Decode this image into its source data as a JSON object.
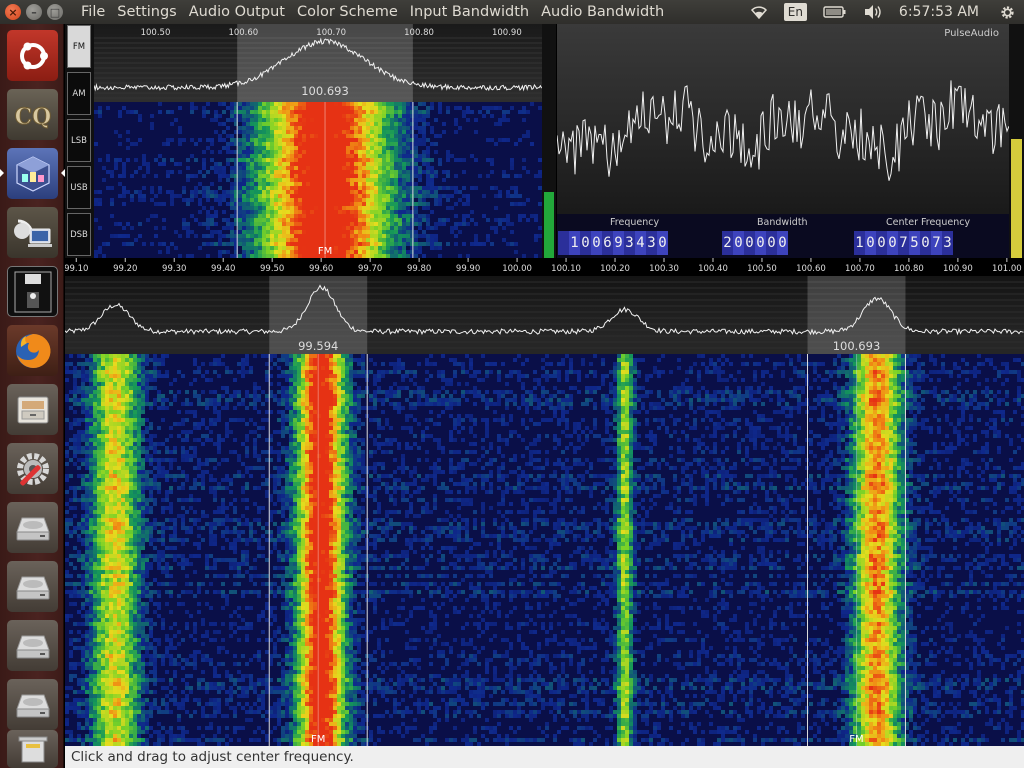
{
  "window": {
    "close_glyph": "×",
    "minimize_glyph": "–",
    "maximize_glyph": "□"
  },
  "menubar": {
    "items": [
      "File",
      "Settings",
      "Audio Output",
      "Color Scheme",
      "Input Bandwidth",
      "Audio Bandwidth"
    ]
  },
  "indicators": {
    "network_icon": "wifi-icon",
    "keyboard_lang": "En",
    "battery_icon": "battery-icon",
    "volume_icon": "volume-icon",
    "clock": "6:57:53 AM",
    "session_icon": "gear-icon"
  },
  "launcher": {
    "items": [
      {
        "name": "ubuntu-dash-icon"
      },
      {
        "name": "cq-app-icon"
      },
      {
        "name": "cubicsdr-icon",
        "active": true
      },
      {
        "name": "remote-desktop-icon"
      },
      {
        "name": "terminal-screensaver-icon"
      },
      {
        "name": "firefox-icon"
      },
      {
        "name": "file-cabinet-icon"
      },
      {
        "name": "system-settings-icon"
      },
      {
        "name": "drive-icon"
      },
      {
        "name": "drive-icon"
      },
      {
        "name": "drive-icon"
      },
      {
        "name": "drive-icon"
      },
      {
        "name": "trash-icon"
      }
    ]
  },
  "modes": {
    "items": [
      "FM",
      "AM",
      "LSB",
      "USB",
      "DSB"
    ],
    "selected": "FM"
  },
  "zoom_view": {
    "ticks": [
      "100.50",
      "100.60",
      "100.70",
      "100.80",
      "100.90"
    ],
    "tick_values": [
      100.5,
      100.6,
      100.7,
      100.8,
      100.9
    ],
    "range": [
      100.43,
      100.94
    ],
    "active_freq_label": "100.693",
    "active_freq": 100.693,
    "passband": [
      100.593,
      100.793
    ],
    "mode_label": "FM"
  },
  "scope": {
    "audio_source_label": "PulseAudio"
  },
  "readouts": {
    "frequency_label": "Frequency",
    "frequency_digits": "100693430",
    "bandwidth_label": "Bandwidth",
    "bandwidth_digits": "200000",
    "center_label": "Center Frequency",
    "center_digits": "100075073"
  },
  "main_view": {
    "ticks": [
      "99.10",
      "99.20",
      "99.30",
      "99.40",
      "99.50",
      "99.60",
      "99.70",
      "99.80",
      "99.90",
      "100.00",
      "100.10",
      "100.20",
      "100.30",
      "100.40",
      "100.50",
      "100.60",
      "100.70",
      "100.80",
      "100.90",
      "101.00"
    ],
    "range": [
      99.077,
      101.035
    ],
    "demods": [
      {
        "label": "99.594",
        "freq": 99.594,
        "bw": 0.2,
        "mode_label": "FM"
      },
      {
        "label": "100.693",
        "freq": 100.693,
        "bw": 0.2,
        "mode_label": "FM"
      }
    ],
    "signals": [
      {
        "freq": 99.18,
        "level": 0.6
      },
      {
        "freq": 99.6,
        "level": 1.0
      },
      {
        "freq": 100.22,
        "level": 0.5
      },
      {
        "freq": 100.735,
        "level": 0.75
      }
    ]
  },
  "status": {
    "message": "Click and drag to adjust center frequency."
  }
}
